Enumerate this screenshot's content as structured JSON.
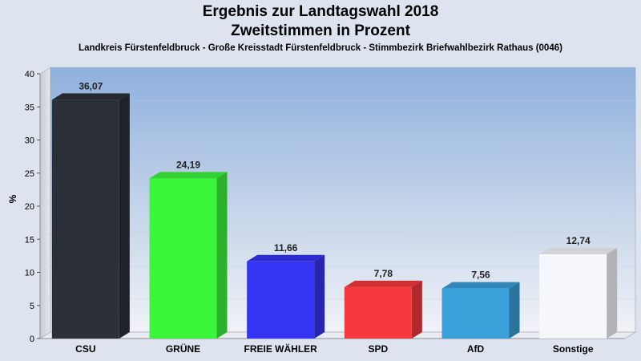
{
  "chart_data": {
    "type": "bar",
    "title": "Ergebnis zur Landtagswahl 2018",
    "subtitle": "Zweitstimmen in Prozent",
    "caption": "Landkreis Fürstenfeldbruck - Große Kreisstadt Fürstenfeldbruck - Stimmbezirk Briefwahlbezirk Rathaus (0046)",
    "ylabel": "%",
    "xlabel": "",
    "ylim": [
      0,
      40
    ],
    "yticks": [
      "0",
      "5",
      "10",
      "15",
      "20",
      "25",
      "30",
      "35",
      "40"
    ],
    "grid": true,
    "categories": [
      "CSU",
      "GRÜNE",
      "FREIE WÄHLER",
      "SPD",
      "AfD",
      "Sonstige"
    ],
    "values": [
      36.07,
      24.19,
      11.66,
      7.78,
      7.56,
      12.74
    ],
    "value_labels": [
      "36,07",
      "24,19",
      "11,66",
      "7,78",
      "7,56",
      "12,74"
    ],
    "colors": [
      "#2b2f38",
      "#3cf63c",
      "#3434f2",
      "#f5393d",
      "#3aa0d9",
      "#f6f7fb"
    ]
  }
}
